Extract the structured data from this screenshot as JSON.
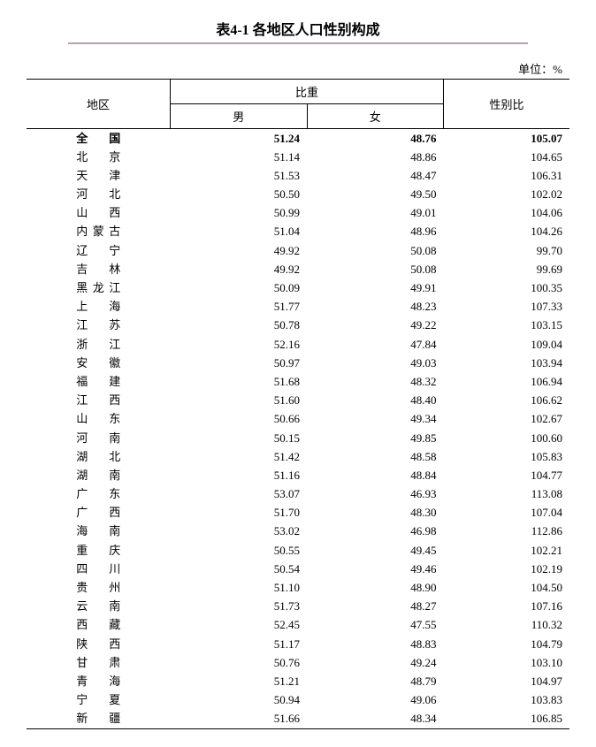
{
  "title": "表4-1 各地区人口性别构成",
  "unit_label": "单位：%",
  "headers": {
    "region": "地区",
    "proportion": "比重",
    "male": "男",
    "female": "女",
    "ratio": "性别比"
  },
  "columns": [
    "region",
    "male",
    "female",
    "ratio"
  ],
  "national_row": {
    "region": "全　国",
    "male": "51.24",
    "female": "48.76",
    "ratio": "105.07"
  },
  "rows": [
    {
      "region": "北　京",
      "male": "51.14",
      "female": "48.86",
      "ratio": "104.65"
    },
    {
      "region": "天　津",
      "male": "51.53",
      "female": "48.47",
      "ratio": "106.31"
    },
    {
      "region": "河　北",
      "male": "50.50",
      "female": "49.50",
      "ratio": "102.02"
    },
    {
      "region": "山　西",
      "male": "50.99",
      "female": "49.01",
      "ratio": "104.06"
    },
    {
      "region": "内蒙古",
      "male": "51.04",
      "female": "48.96",
      "ratio": "104.26"
    },
    {
      "region": "辽　宁",
      "male": "49.92",
      "female": "50.08",
      "ratio": "99.70"
    },
    {
      "region": "吉　林",
      "male": "49.92",
      "female": "50.08",
      "ratio": "99.69"
    },
    {
      "region": "黑龙江",
      "male": "50.09",
      "female": "49.91",
      "ratio": "100.35"
    },
    {
      "region": "上　海",
      "male": "51.77",
      "female": "48.23",
      "ratio": "107.33"
    },
    {
      "region": "江　苏",
      "male": "50.78",
      "female": "49.22",
      "ratio": "103.15"
    },
    {
      "region": "浙　江",
      "male": "52.16",
      "female": "47.84",
      "ratio": "109.04"
    },
    {
      "region": "安　徽",
      "male": "50.97",
      "female": "49.03",
      "ratio": "103.94"
    },
    {
      "region": "福　建",
      "male": "51.68",
      "female": "48.32",
      "ratio": "106.94"
    },
    {
      "region": "江　西",
      "male": "51.60",
      "female": "48.40",
      "ratio": "106.62"
    },
    {
      "region": "山　东",
      "male": "50.66",
      "female": "49.34",
      "ratio": "102.67"
    },
    {
      "region": "河　南",
      "male": "50.15",
      "female": "49.85",
      "ratio": "100.60"
    },
    {
      "region": "湖　北",
      "male": "51.42",
      "female": "48.58",
      "ratio": "105.83"
    },
    {
      "region": "湖　南",
      "male": "51.16",
      "female": "48.84",
      "ratio": "104.77"
    },
    {
      "region": "广　东",
      "male": "53.07",
      "female": "46.93",
      "ratio": "113.08"
    },
    {
      "region": "广　西",
      "male": "51.70",
      "female": "48.30",
      "ratio": "107.04"
    },
    {
      "region": "海　南",
      "male": "53.02",
      "female": "46.98",
      "ratio": "112.86"
    },
    {
      "region": "重　庆",
      "male": "50.55",
      "female": "49.45",
      "ratio": "102.21"
    },
    {
      "region": "四　川",
      "male": "50.54",
      "female": "49.46",
      "ratio": "102.19"
    },
    {
      "region": "贵　州",
      "male": "51.10",
      "female": "48.90",
      "ratio": "104.50"
    },
    {
      "region": "云　南",
      "male": "51.73",
      "female": "48.27",
      "ratio": "107.16"
    },
    {
      "region": "西　藏",
      "male": "52.45",
      "female": "47.55",
      "ratio": "110.32"
    },
    {
      "region": "陕　西",
      "male": "51.17",
      "female": "48.83",
      "ratio": "104.79"
    },
    {
      "region": "甘　肃",
      "male": "50.76",
      "female": "49.24",
      "ratio": "103.10"
    },
    {
      "region": "青　海",
      "male": "51.21",
      "female": "48.79",
      "ratio": "104.97"
    },
    {
      "region": "宁　夏",
      "male": "50.94",
      "female": "49.06",
      "ratio": "103.83"
    },
    {
      "region": "新　疆",
      "male": "51.66",
      "female": "48.34",
      "ratio": "106.85"
    }
  ],
  "styles": {
    "background_color": "#ffffff",
    "text_color": "#000000",
    "title_underline_color": "#b8a0b0",
    "border_color": "#000000",
    "title_fontsize": 16,
    "body_fontsize": 13,
    "col_widths": {
      "region": 150,
      "male": 150,
      "female": 150,
      "ratio": 130
    },
    "col_align": {
      "region": "center",
      "male": "right",
      "female": "right",
      "ratio": "right"
    }
  }
}
